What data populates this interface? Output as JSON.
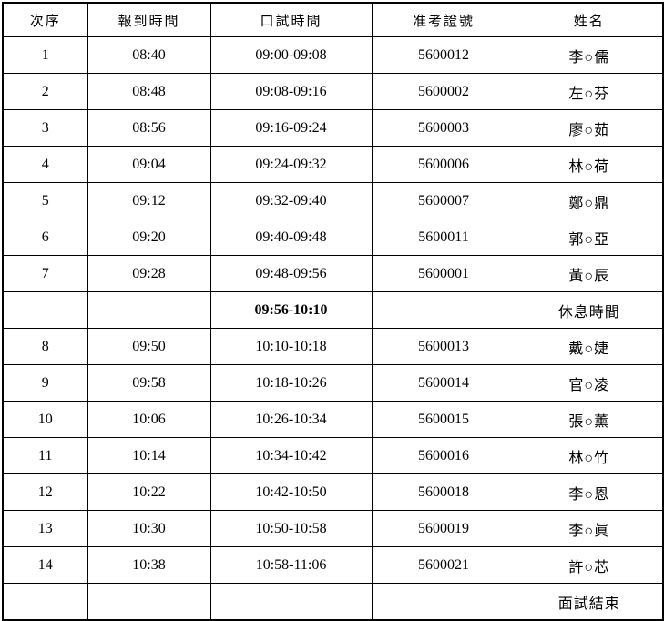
{
  "accent_colors": {
    "border": "#000000",
    "highlight_row_background": "#e6e6e6",
    "text": "#000000"
  },
  "table": {
    "columns": [
      "次序",
      "報到時間",
      "口試時間",
      "准考證號",
      "姓名"
    ],
    "column_keys": [
      "order",
      "checkin",
      "exam",
      "ticket",
      "name"
    ],
    "rows": [
      {
        "type": "data",
        "order": "1",
        "checkin": "08:40",
        "exam": "09:00-09:08",
        "ticket": "5600012",
        "name": "李○儒"
      },
      {
        "type": "data",
        "order": "2",
        "checkin": "08:48",
        "exam": "09:08-09:16",
        "ticket": "5600002",
        "name": "左○芬"
      },
      {
        "type": "data",
        "order": "3",
        "checkin": "08:56",
        "exam": "09:16-09:24",
        "ticket": "5600003",
        "name": "廖○茹"
      },
      {
        "type": "data",
        "order": "4",
        "checkin": "09:04",
        "exam": "09:24-09:32",
        "ticket": "5600006",
        "name": "林○荷"
      },
      {
        "type": "data",
        "order": "5",
        "checkin": "09:12",
        "exam": "09:32-09:40",
        "ticket": "5600007",
        "name": "鄭○鼎"
      },
      {
        "type": "data",
        "order": "6",
        "checkin": "09:20",
        "exam": "09:40-09:48",
        "ticket": "5600011",
        "name": "郭○亞"
      },
      {
        "type": "data",
        "order": "7",
        "checkin": "09:28",
        "exam": "09:48-09:56",
        "ticket": "5600001",
        "name": "黃○辰"
      },
      {
        "type": "break",
        "order": "",
        "checkin": "",
        "exam": "09:56-10:10",
        "ticket": "",
        "name": "休息時間"
      },
      {
        "type": "data",
        "order": "8",
        "checkin": "09:50",
        "exam": "10:10-10:18",
        "ticket": "5600013",
        "name": "戴○婕"
      },
      {
        "type": "data",
        "order": "9",
        "checkin": "09:58",
        "exam": "10:18-10:26",
        "ticket": "5600014",
        "name": "官○凌"
      },
      {
        "type": "data",
        "order": "10",
        "checkin": "10:06",
        "exam": "10:26-10:34",
        "ticket": "5600015",
        "name": "張○薰"
      },
      {
        "type": "data",
        "order": "11",
        "checkin": "10:14",
        "exam": "10:34-10:42",
        "ticket": "5600016",
        "name": "林○竹"
      },
      {
        "type": "data",
        "order": "12",
        "checkin": "10:22",
        "exam": "10:42-10:50",
        "ticket": "5600018",
        "name": "李○恩"
      },
      {
        "type": "data",
        "order": "13",
        "checkin": "10:30",
        "exam": "10:50-10:58",
        "ticket": "5600019",
        "name": "李○眞"
      },
      {
        "type": "data",
        "order": "14",
        "checkin": "10:38",
        "exam": "10:58-11:06",
        "ticket": "5600021",
        "name": "許○芯"
      },
      {
        "type": "end",
        "order": "",
        "checkin": "",
        "exam": "",
        "ticket": "",
        "name": "面試結束"
      }
    ]
  }
}
